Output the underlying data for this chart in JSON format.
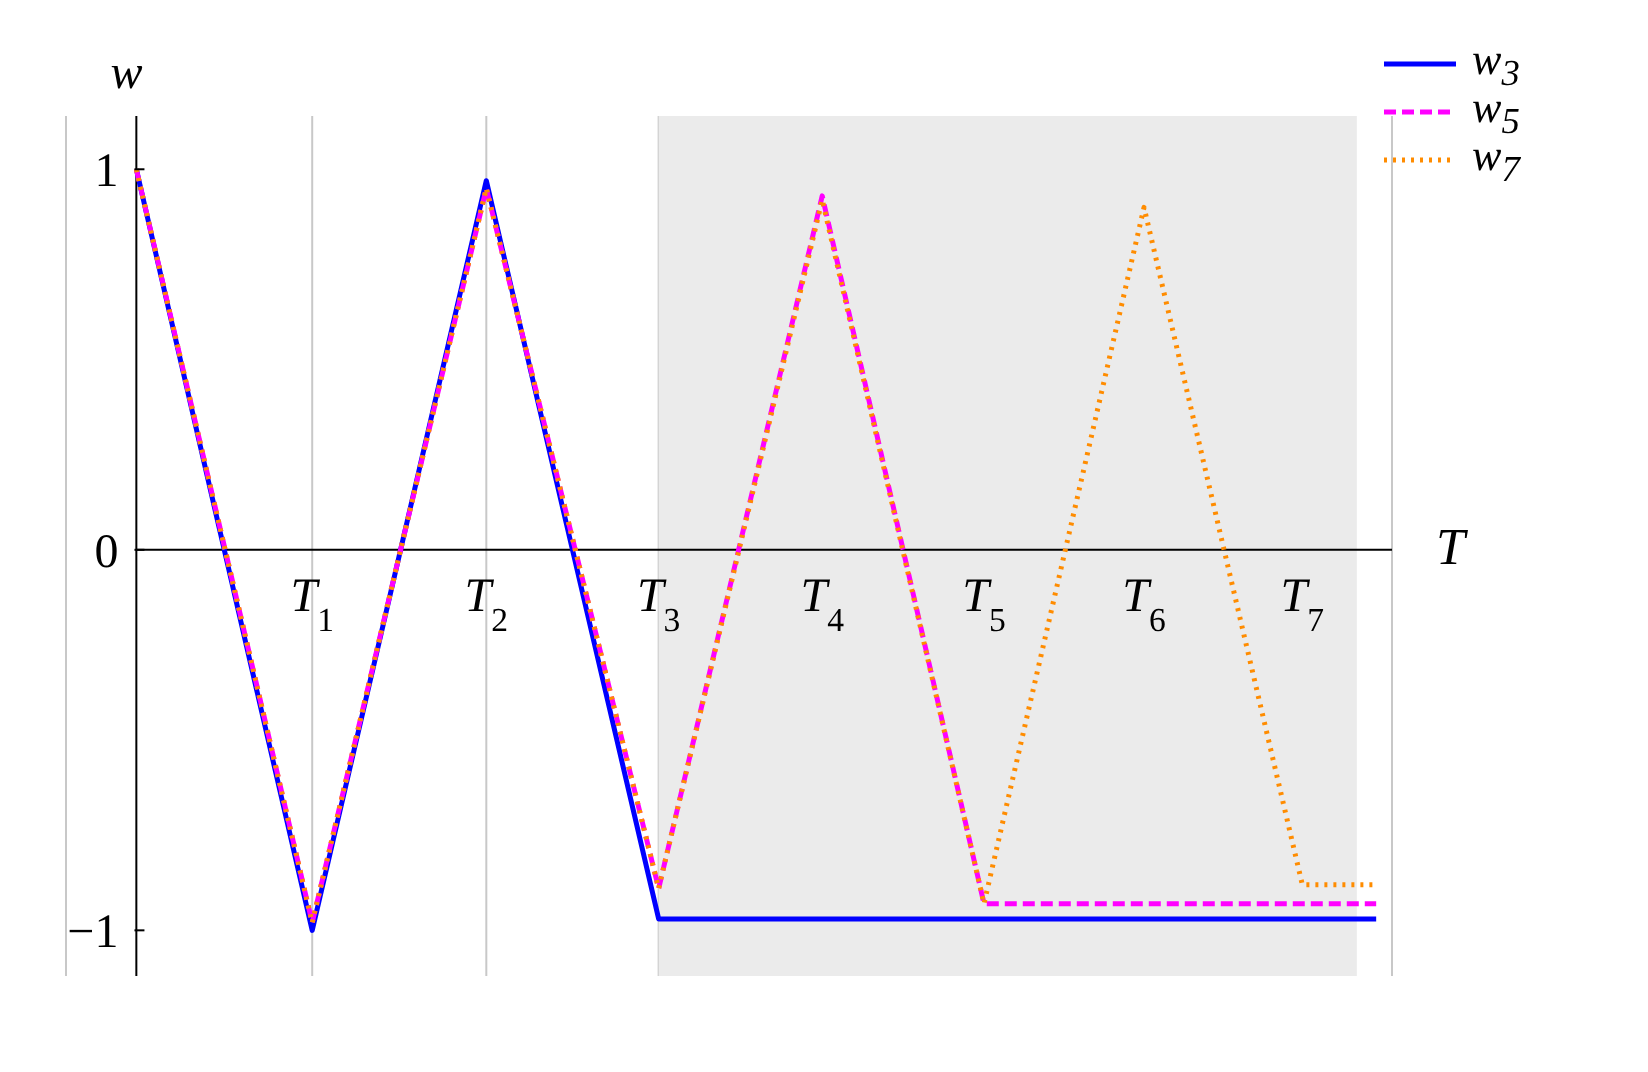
{
  "chart_data": {
    "type": "line",
    "xlabel": "T",
    "ylabel": "w",
    "xlim": [
      -0.4,
      7.14
    ],
    "ylim": [
      -1.12,
      1.14
    ],
    "xticks": [
      {
        "value": 1,
        "label": "T$_{1}$"
      },
      {
        "value": 1.99,
        "label": "T$_{2}$"
      },
      {
        "value": 2.97,
        "label": "T$_{3}$"
      },
      {
        "value": 3.9,
        "label": "T$_{4}$"
      },
      {
        "value": 4.82,
        "label": "T$_{5}$"
      },
      {
        "value": 5.73,
        "label": "T$_{6}$"
      },
      {
        "value": 6.63,
        "label": "T$_{7}$"
      }
    ],
    "yticks": [
      -1,
      0,
      1
    ],
    "grid": "x",
    "legend": "top right",
    "bands": [
      {
        "axis": "x",
        "from": 2.97,
        "to": 6.94,
        "color": "#ebebeb"
      }
    ],
    "series": [
      {
        "name": "w$_{3}$",
        "color": "#0000ff",
        "line_style": "solid",
        "x": [
          0,
          1,
          1.99,
          2.97,
          7.05
        ],
        "values": [
          1,
          -1,
          0.97,
          -0.97,
          -0.97
        ]
      },
      {
        "name": "w$_{5}$",
        "color": "#ff00ff",
        "line_style": "dashed",
        "x": [
          0,
          1,
          1.99,
          2.97,
          3.9,
          4.82,
          7.05
        ],
        "values": [
          1,
          -0.98,
          0.95,
          -0.89,
          0.93,
          -0.93,
          -0.93
        ]
      },
      {
        "name": "w$_{7}$",
        "color": "#ff8c00",
        "line_style": "dotted",
        "x": [
          0,
          1,
          1.99,
          2.97,
          3.9,
          4.82,
          5.73,
          6.63,
          7.05
        ],
        "values": [
          1,
          -0.98,
          0.95,
          -0.89,
          0.92,
          -0.93,
          0.9,
          -0.88,
          -0.88
        ]
      }
    ]
  }
}
